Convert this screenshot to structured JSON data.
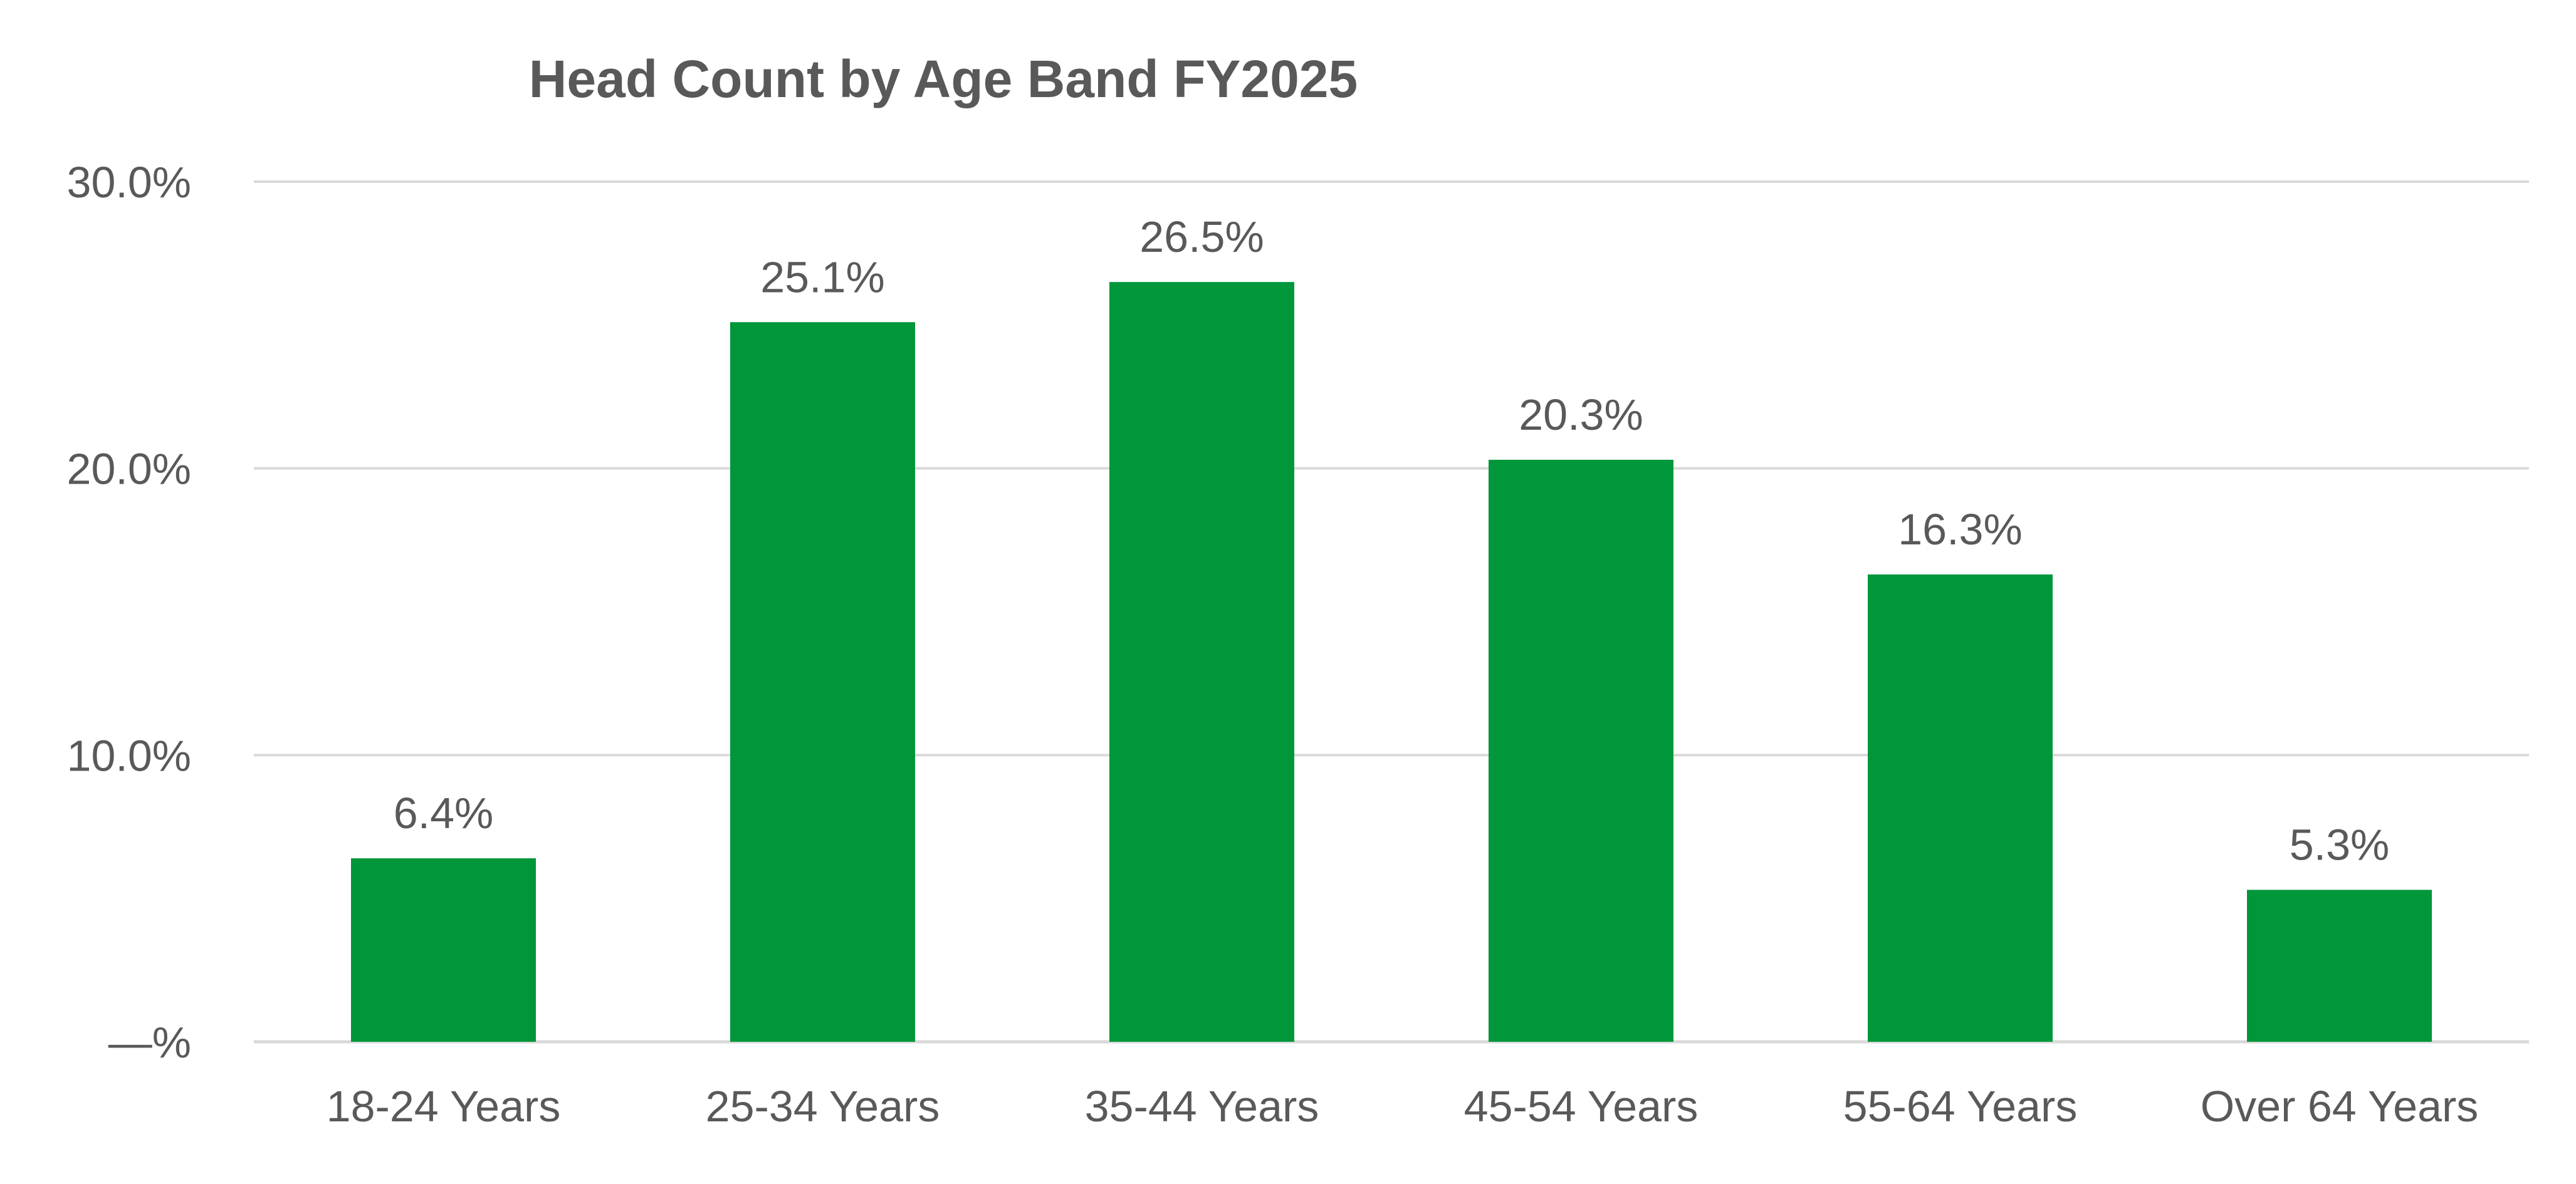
{
  "chart_data": {
    "type": "bar",
    "title": "Head Count by Age Band FY2025",
    "categories": [
      "18-24 Years",
      "25-34 Years",
      "35-44 Years",
      "45-54 Years",
      "55-64 Years",
      "Over 64 Years"
    ],
    "values": [
      6.4,
      25.1,
      26.5,
      20.3,
      16.3,
      5.3
    ],
    "data_labels": [
      "6.4%",
      "25.1%",
      "26.5%",
      "20.3%",
      "16.3%",
      "5.3%"
    ],
    "xlabel": "",
    "ylabel": "",
    "ylim": [
      0,
      30
    ],
    "y_ticks": [
      {
        "value": 0,
        "label": "—%"
      },
      {
        "value": 10,
        "label": "10.0%"
      },
      {
        "value": 20,
        "label": "20.0%"
      },
      {
        "value": 30,
        "label": "30.0%"
      }
    ],
    "grid": true,
    "legend": "none",
    "bar_color": "#00963A",
    "text_color": "#595959",
    "grid_color": "#D9D9D9"
  }
}
